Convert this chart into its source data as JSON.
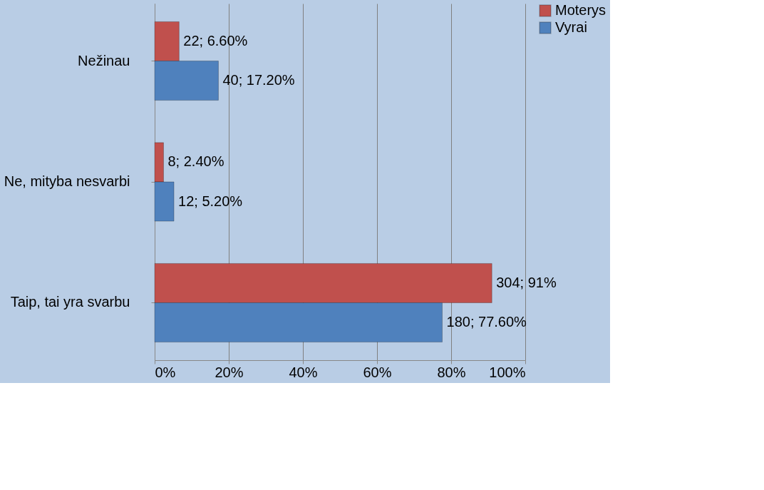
{
  "chart_data": {
    "type": "bar",
    "orientation": "horizontal",
    "categories": [
      "Nežinau",
      "Ne, mityba nesvarbi",
      "Taip, tai yra svarbu"
    ],
    "series": [
      {
        "name": "Moterys",
        "color": "#c0504d",
        "values": [
          6.6,
          2.4,
          91
        ],
        "value_labels": [
          "22; 6.60%",
          "8; 2.40%",
          "304; 91%"
        ]
      },
      {
        "name": "Vyrai",
        "color": "#4f81bd",
        "values": [
          17.2,
          5.2,
          77.6
        ],
        "value_labels": [
          "40; 17.20%",
          "12; 5.20%",
          "180; 77.60%"
        ]
      }
    ],
    "xlim": [
      0,
      100
    ],
    "xticks": [
      {
        "value": 0,
        "label": "0%"
      },
      {
        "value": 20,
        "label": "20%"
      },
      {
        "value": 40,
        "label": "40%"
      },
      {
        "value": 60,
        "label": "60%"
      },
      {
        "value": 80,
        "label": "80%"
      },
      {
        "value": 100,
        "label": "100%"
      }
    ],
    "grid": "x",
    "legend": "right"
  }
}
